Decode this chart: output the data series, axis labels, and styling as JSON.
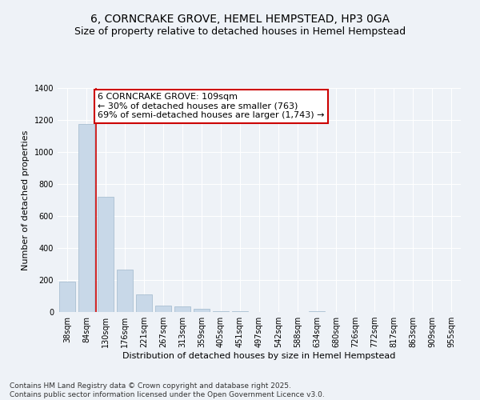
{
  "title": "6, CORNCRAKE GROVE, HEMEL HEMPSTEAD, HP3 0GA",
  "subtitle": "Size of property relative to detached houses in Hemel Hempstead",
  "xlabel": "Distribution of detached houses by size in Hemel Hempstead",
  "ylabel": "Number of detached properties",
  "bar_color": "#c8d8e8",
  "bar_edge_color": "#a0b8cc",
  "categories": [
    "38sqm",
    "84sqm",
    "130sqm",
    "176sqm",
    "221sqm",
    "267sqm",
    "313sqm",
    "359sqm",
    "405sqm",
    "451sqm",
    "497sqm",
    "542sqm",
    "588sqm",
    "634sqm",
    "680sqm",
    "726sqm",
    "772sqm",
    "817sqm",
    "863sqm",
    "909sqm",
    "955sqm"
  ],
  "values": [
    190,
    1175,
    720,
    265,
    110,
    38,
    35,
    22,
    6,
    3,
    0,
    0,
    0,
    6,
    0,
    0,
    0,
    0,
    0,
    0,
    0
  ],
  "ylim": [
    0,
    1400
  ],
  "yticks": [
    0,
    200,
    400,
    600,
    800,
    1000,
    1200,
    1400
  ],
  "property_line_x": 1.5,
  "annotation_title": "6 CORNCRAKE GROVE: 109sqm",
  "annotation_line1": "← 30% of detached houses are smaller (763)",
  "annotation_line2": "69% of semi-detached houses are larger (1,743) →",
  "annotation_box_color": "#ffffff",
  "annotation_box_edge_color": "#cc0000",
  "red_line_color": "#cc0000",
  "background_color": "#eef2f7",
  "footer_line1": "Contains HM Land Registry data © Crown copyright and database right 2025.",
  "footer_line2": "Contains public sector information licensed under the Open Government Licence v3.0.",
  "grid_color": "#ffffff",
  "title_fontsize": 10,
  "subtitle_fontsize": 9,
  "axis_label_fontsize": 8,
  "tick_fontsize": 7,
  "annotation_fontsize": 8,
  "footer_fontsize": 6.5
}
